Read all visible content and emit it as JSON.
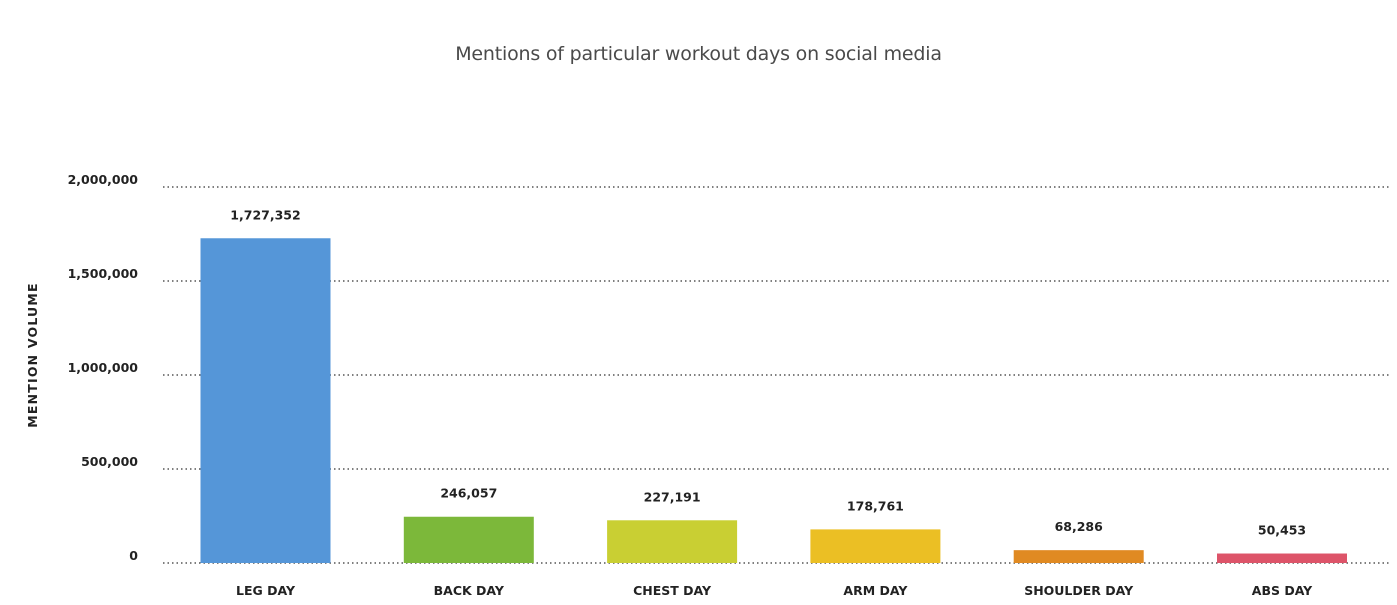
{
  "chart_data": {
    "type": "bar",
    "title": "Mentions of particular workout days on social media",
    "ylabel": "MENTION VOLUME",
    "xlabel": "",
    "categories": [
      "LEG DAY",
      "BACK DAY",
      "CHEST DAY",
      "ARM DAY",
      "SHOULDER DAY",
      "ABS DAY"
    ],
    "values": [
      1727352,
      246057,
      227191,
      178761,
      68286,
      50453
    ],
    "value_labels": [
      "1,727,352",
      "246,057",
      "227,191",
      "178,761",
      "68,286",
      "50,453"
    ],
    "bar_colors": [
      "#5596d8",
      "#7cb83a",
      "#c9cf33",
      "#ebbf24",
      "#e08a22",
      "#dd5469"
    ],
    "ylim": [
      0,
      2000000
    ],
    "yticks": [
      0,
      500000,
      1000000,
      1500000,
      2000000
    ],
    "ytick_labels": [
      "0",
      "500,000",
      "1,000,000",
      "1,500,000",
      "2,000,000"
    ],
    "grid": true,
    "legend": "none"
  }
}
